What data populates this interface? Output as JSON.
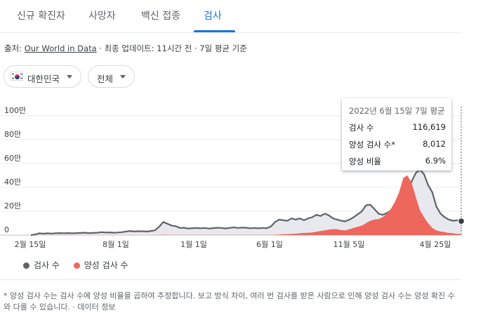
{
  "tabs": [
    {
      "label": "신규 확진자",
      "active": false
    },
    {
      "label": "사망자",
      "active": false
    },
    {
      "label": "백신 접종",
      "active": false
    },
    {
      "label": "검사",
      "active": true
    }
  ],
  "source": {
    "prefix": "출처:",
    "link": "Our World in Data",
    "suffix": " · 최종 업데이트: 11시간 전 · 7일 평균 기준"
  },
  "filters": {
    "country": "대한민국",
    "country_flag_icon": "south-korea-flag-icon",
    "range": "전체"
  },
  "tooltip": {
    "title": "2022년 6월 15일 7일 평균",
    "rows": [
      {
        "label": "검사 수",
        "value": "116,619"
      },
      {
        "label": "양성 검사 수*",
        "value": "8,012"
      },
      {
        "label": "양성 비율",
        "value": "6.9%"
      }
    ]
  },
  "chart_data": {
    "type": "area",
    "y_ticks": [
      "0",
      "20만",
      "40만",
      "60만",
      "80만",
      "100만"
    ],
    "ylim": [
      0,
      1000000
    ],
    "x_ticks": [
      "2월 15일",
      "8월 1일",
      "1월 1일",
      "6월 1일",
      "11월 5일",
      "4월 25일"
    ],
    "grid": true,
    "series": [
      {
        "name": "검사 수",
        "color": "#5f6368",
        "values": [
          0,
          5000,
          15000,
          12000,
          15000,
          13000,
          15000,
          17000,
          16000,
          17000,
          15000,
          17000,
          18000,
          20000,
          17000,
          18000,
          20000,
          25000,
          22000,
          23000,
          20000,
          22000,
          25000,
          30000,
          35000,
          30000,
          33000,
          32000,
          30000,
          35000,
          40000,
          70000,
          110000,
          95000,
          80000,
          75000,
          60000,
          62000,
          55000,
          58000,
          60000,
          57000,
          60000,
          55000,
          58000,
          62000,
          60000,
          56000,
          60000,
          65000,
          60000,
          63000,
          62000,
          57000,
          60000,
          57000,
          60000,
          58000,
          72000,
          110000,
          130000,
          125000,
          120000,
          140000,
          130000,
          140000,
          125000,
          140000,
          150000,
          170000,
          160000,
          180000,
          165000,
          140000,
          130000,
          120000,
          115000,
          130000,
          150000,
          175000,
          200000,
          250000,
          255000,
          220000,
          180000,
          170000,
          185000,
          205000,
          220000,
          245000,
          280000,
          340000,
          450000,
          520000,
          550000,
          510000,
          420000,
          360000,
          240000,
          180000,
          150000,
          130000,
          120000,
          125000,
          116619
        ]
      },
      {
        "name": "양성 검사 수",
        "color": "#ee675c",
        "values": [
          0,
          200,
          300,
          250,
          300,
          250,
          300,
          300,
          300,
          300,
          300,
          350,
          400,
          400,
          350,
          400,
          400,
          500,
          500,
          500,
          500,
          500,
          600,
          800,
          1000,
          800,
          700,
          600,
          600,
          800,
          1000,
          2000,
          3000,
          2500,
          2000,
          1500,
          1000,
          1000,
          900,
          900,
          1000,
          900,
          1000,
          900,
          1000,
          1100,
          1000,
          1000,
          1200,
          1500,
          1400,
          1500,
          1400,
          1300,
          1500,
          1400,
          1500,
          1500,
          2000,
          3000,
          5000,
          7000,
          8000,
          10000,
          12000,
          15000,
          18000,
          20000,
          22000,
          28000,
          35000,
          40000,
          45000,
          50000,
          48000,
          42000,
          40000,
          50000,
          60000,
          70000,
          80000,
          100000,
          120000,
          130000,
          135000,
          150000,
          180000,
          220000,
          280000,
          360000,
          480000,
          500000,
          440000,
          320000,
          210000,
          150000,
          100000,
          60000,
          40000,
          30000,
          25000,
          18000,
          15000,
          10000,
          8012
        ]
      }
    ]
  },
  "legend": [
    {
      "label": "검사 수",
      "color": "#5f6368"
    },
    {
      "label": "양성 검사 수",
      "color": "#ee675c"
    }
  ],
  "footnote": "* 양성 검사 수는 검사 수에 양성 비율을 곱하여 추정합니다. 보고 방식 차이, 여러 번 검사를 받은 사람으로 인해 양성 검사 수는 양성 확진 수와 다를 수 있습니다. · 데이터 정보"
}
